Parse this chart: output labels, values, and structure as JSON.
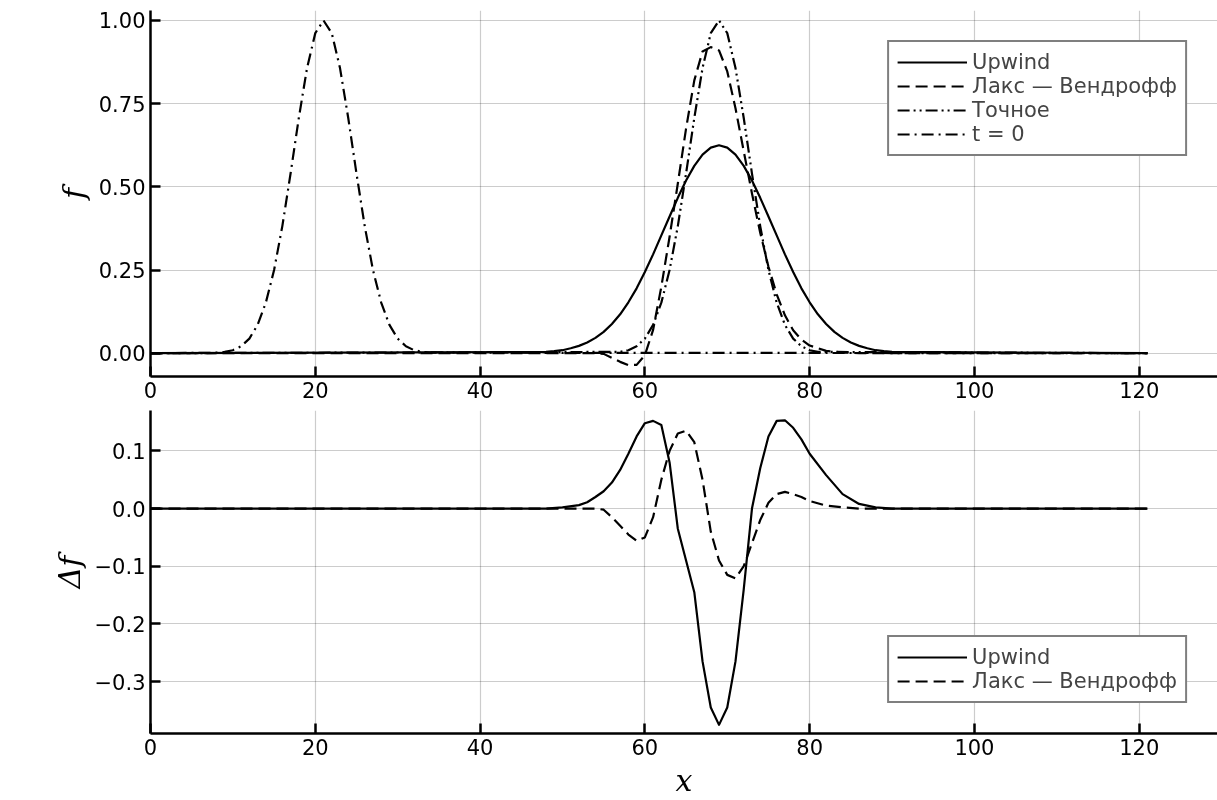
{
  "chart_data": [
    {
      "type": "line",
      "ylabel": "f",
      "xlim": [
        0,
        129.5
      ],
      "ylim": [
        -0.07,
        1.03
      ],
      "xticks": [
        0,
        20,
        40,
        60,
        80,
        100,
        120
      ],
      "yticks": [
        {
          "value": 0,
          "label": "0.00"
        },
        {
          "value": 0.25,
          "label": "0.25"
        },
        {
          "value": 0.5,
          "label": "0.50"
        },
        {
          "value": 0.75,
          "label": "0.75"
        },
        {
          "value": 1,
          "label": "1.00"
        }
      ],
      "grid": true,
      "legend": "top right",
      "marker": "none",
      "series": [
        {
          "name": "Upwind",
          "color": "#000000",
          "line_style": "solid",
          "x": [
            0,
            48,
            49,
            50,
            51,
            52,
            53,
            54,
            55,
            56,
            57,
            58,
            59,
            60,
            61,
            62,
            63,
            64,
            65,
            66,
            67,
            68,
            69,
            70,
            71,
            72,
            73,
            74,
            75,
            76,
            77,
            78,
            79,
            80,
            81,
            82,
            83,
            84,
            85,
            86,
            87,
            88,
            89,
            90,
            121
          ],
          "values": [
            0,
            0.004,
            0.006,
            0.009,
            0.015,
            0.022,
            0.032,
            0.046,
            0.064,
            0.088,
            0.117,
            0.153,
            0.195,
            0.244,
            0.297,
            0.354,
            0.411,
            0.467,
            0.519,
            0.563,
            0.597,
            0.618,
            0.625,
            0.618,
            0.597,
            0.563,
            0.519,
            0.467,
            0.411,
            0.354,
            0.297,
            0.244,
            0.195,
            0.153,
            0.117,
            0.088,
            0.064,
            0.046,
            0.032,
            0.022,
            0.015,
            0.009,
            0.006,
            0.004,
            0
          ]
        },
        {
          "name": "Лакс — Вендрофф",
          "color": "#000000",
          "line_style": "dashed",
          "x": [
            0,
            50,
            54,
            55,
            56,
            57,
            58,
            59,
            60,
            61,
            62,
            63,
            64,
            65,
            66,
            67,
            68,
            69,
            70,
            71,
            72,
            73,
            74,
            75,
            76,
            77,
            78,
            79,
            80,
            82,
            84,
            86,
            121
          ],
          "values": [
            0,
            0,
            0,
            -0.002,
            -0.014,
            -0.026,
            -0.036,
            -0.035,
            -0.006,
            0.07,
            0.2,
            0.35,
            0.51,
            0.675,
            0.82,
            0.907,
            0.92,
            0.91,
            0.847,
            0.736,
            0.607,
            0.48,
            0.362,
            0.26,
            0.177,
            0.114,
            0.069,
            0.041,
            0.023,
            0.007,
            0.002,
            0,
            0
          ]
        },
        {
          "name": "Точное",
          "color": "#000000",
          "line_style": "dashdotdot",
          "x": [
            0,
            57,
            58,
            59,
            60,
            61,
            62,
            63,
            64,
            65,
            66,
            67,
            68,
            69,
            70,
            71,
            72,
            73,
            74,
            75,
            76,
            77,
            78,
            79,
            80,
            81,
            121
          ],
          "values": [
            0,
            0.004,
            0.009,
            0.021,
            0.044,
            0.085,
            0.152,
            0.25,
            0.382,
            0.54,
            0.707,
            0.857,
            0.962,
            1,
            0.962,
            0.857,
            0.707,
            0.54,
            0.382,
            0.25,
            0.152,
            0.085,
            0.044,
            0.021,
            0.009,
            0.004,
            0
          ]
        },
        {
          "name": "t = 0",
          "color": "#000000",
          "line_style": "dashdot",
          "x": [
            0,
            8,
            9,
            10,
            11,
            12,
            13,
            14,
            15,
            16,
            17,
            18,
            19,
            20,
            21,
            22,
            23,
            24,
            25,
            26,
            27,
            28,
            29,
            30,
            31,
            32,
            33,
            34,
            121
          ],
          "values": [
            0,
            0.0015,
            0.004,
            0.009,
            0.021,
            0.044,
            0.085,
            0.152,
            0.25,
            0.382,
            0.54,
            0.707,
            0.857,
            0.962,
            1,
            0.962,
            0.857,
            0.707,
            0.54,
            0.382,
            0.25,
            0.152,
            0.085,
            0.044,
            0.021,
            0.009,
            0.004,
            0.0015,
            0
          ]
        }
      ]
    },
    {
      "type": "line",
      "xlabel": "x",
      "ylabel": "Δf",
      "xlim": [
        0,
        129.5
      ],
      "ylim": [
        -0.39,
        0.17
      ],
      "xticks": [
        0,
        20,
        40,
        60,
        80,
        100,
        120
      ],
      "yticks": [
        {
          "value": -0.3,
          "label": "−0.3"
        },
        {
          "value": -0.2,
          "label": "−0.2"
        },
        {
          "value": -0.1,
          "label": "−0.1"
        },
        {
          "value": 0,
          "label": "0.0"
        },
        {
          "value": 0.1,
          "label": "0.1"
        }
      ],
      "grid": true,
      "legend": "bottom right",
      "marker": "none",
      "series": [
        {
          "name": "Upwind",
          "color": "#000000",
          "line_style": "solid",
          "x": [
            0,
            48,
            50,
            52,
            53,
            54,
            55,
            56,
            57,
            58,
            59,
            60,
            61,
            62,
            63,
            64,
            65,
            66,
            67,
            68,
            69,
            70,
            71,
            72,
            73,
            74,
            75,
            76,
            77,
            78,
            79,
            80,
            82,
            84,
            86,
            88,
            90,
            121
          ],
          "values": [
            0,
            0,
            0.002,
            0.006,
            0.011,
            0.02,
            0.03,
            0.045,
            0.067,
            0.095,
            0.125,
            0.148,
            0.152,
            0.145,
            0.08,
            -0.035,
            -0.09,
            -0.145,
            -0.265,
            -0.345,
            -0.375,
            -0.345,
            -0.265,
            -0.14,
            0,
            0.07,
            0.125,
            0.152,
            0.153,
            0.14,
            0.12,
            0.095,
            0.058,
            0.025,
            0.008,
            0.002,
            0,
            0
          ]
        },
        {
          "name": "Лакс — Вендрофф",
          "color": "#000000",
          "line_style": "dashed",
          "x": [
            0,
            50,
            54,
            55,
            56,
            57,
            58,
            59,
            60,
            61,
            62,
            63,
            64,
            65,
            66,
            67,
            68,
            69,
            70,
            71,
            72,
            73,
            74,
            75,
            76,
            77,
            78,
            79,
            80,
            82,
            84,
            86,
            121
          ],
          "values": [
            0,
            0,
            0,
            -0.002,
            -0.015,
            -0.03,
            -0.045,
            -0.056,
            -0.05,
            -0.015,
            0.05,
            0.1,
            0.13,
            0.135,
            0.115,
            0.05,
            -0.04,
            -0.09,
            -0.115,
            -0.121,
            -0.1,
            -0.06,
            -0.02,
            0.01,
            0.025,
            0.029,
            0.025,
            0.02,
            0.013,
            0.005,
            0.002,
            0,
            0
          ]
        }
      ]
    }
  ]
}
